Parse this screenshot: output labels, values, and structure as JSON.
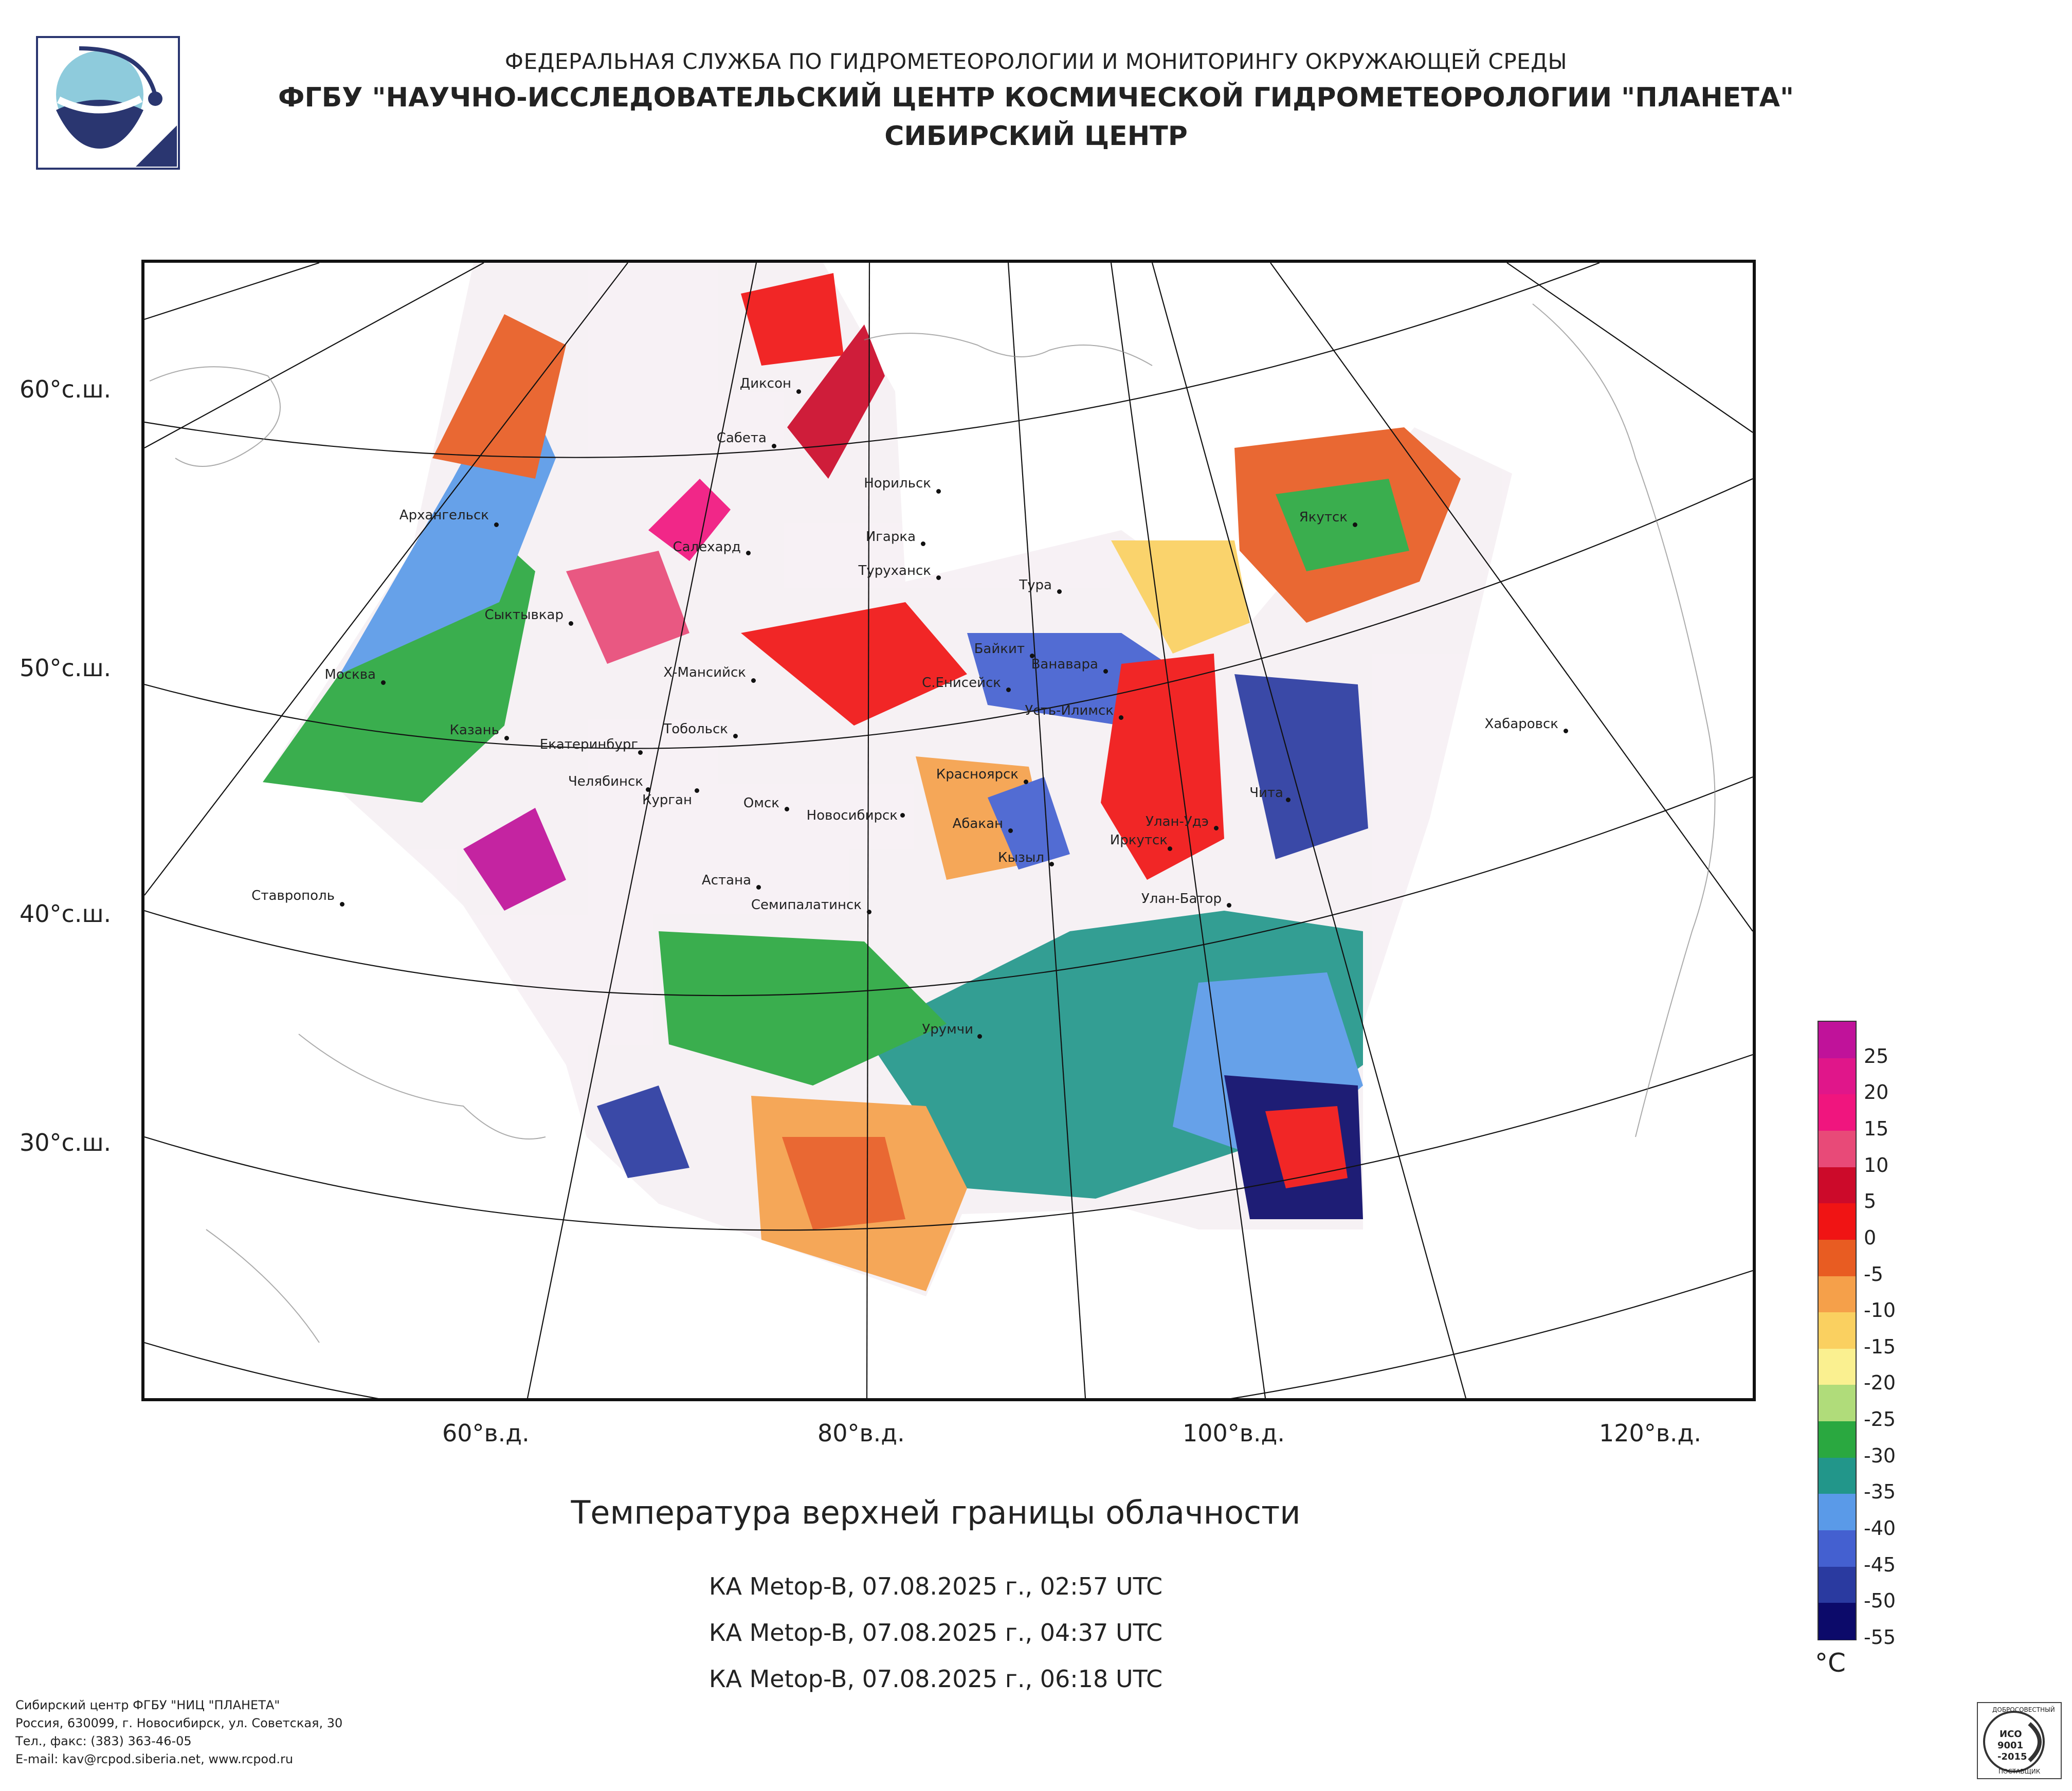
{
  "header": {
    "line1": "ФЕДЕРАЛЬНАЯ СЛУЖБА ПО ГИДРОМЕТЕОРОЛОГИИ И МОНИТОРИНГУ ОКРУЖАЮЩЕЙ СРЕДЫ",
    "line2": "ФГБУ \"НАУЧНО-ИССЛЕДОВАТЕЛЬСКИЙ ЦЕНТР КОСМИЧЕСКОЙ ГИДРОМЕТЕОРОЛОГИИ \"ПЛАНЕТА\"",
    "line3": "СИБИРСКИЙ ЦЕНТР"
  },
  "map": {
    "lat_labels": [
      "60°с.ш.",
      "50°с.ш.",
      "40°с.ш.",
      "30°с.ш."
    ],
    "lon_labels": [
      "60°в.д.",
      "80°в.д.",
      "100°в.д.",
      "120°в.д."
    ],
    "cities": [
      "Диксон",
      "Сабета",
      "Норильск",
      "Архангельск",
      "Салехард",
      "Игарка",
      "Туруханск",
      "Тура",
      "Якутск",
      "Сыктывкар",
      "Байкит",
      "Ванавара",
      "Москва",
      "Х-Мансийск",
      "С.Енисейск",
      "Усть-Илимск",
      "Хабаровск",
      "Казань",
      "Тобольск",
      "Екатеринбург",
      "Челябинск",
      "Курган",
      "Красноярск",
      "Чита",
      "Омск",
      "Новосибирск",
      "Абакан",
      "Улан-Удэ",
      "Иркутск",
      "Кызыл",
      "Астана",
      "Ставрополь",
      "Семипалатинск",
      "Улан-Батор",
      "Урумчи"
    ]
  },
  "legend": {
    "unit": "°C",
    "labels": [
      "25",
      "20",
      "15",
      "10",
      "5",
      "0",
      "-5",
      "-10",
      "-15",
      "-20",
      "-25",
      "-30",
      "-35",
      "-40",
      "-45",
      "-50",
      "-55"
    ],
    "colors": [
      "#c0129a",
      "#e0168a",
      "#f0157e",
      "#e84a78",
      "#cc0a2a",
      "#f01414",
      "#e85c22",
      "#f5a04a",
      "#fad060",
      "#faf090",
      "#b0dc7a",
      "#2aa840",
      "#22968a",
      "#5a9ae8",
      "#4460d0",
      "#2a3aa0",
      "#0c0a6a"
    ]
  },
  "title": "Температура верхней границы облачности",
  "passes": [
    "КА Metop-B, 07.08.2025 г., 02:57 UTC",
    "КА Metop-B, 07.08.2025 г., 04:37 UTC",
    "КА Metop-B, 07.08.2025 г., 06:18 UTC"
  ],
  "footer": {
    "line1": "Сибирский центр ФГБУ \"НИЦ \"ПЛАНЕТА\"",
    "line2": "Россия, 630099, г. Новосибирск, ул. Советская, 30",
    "line3": "Тел., факс: (383) 363-46-05",
    "line4": "E-mail: kav@rcpod.siberia.net, www.rcpod.ru"
  },
  "iso_badge": {
    "top": "ДОБРОСОВЕСТНЫЙ",
    "mid1": "ИСО",
    "mid2": "9001",
    "mid3": "-2015",
    "bottom": "ПОСТАВЩИК"
  }
}
